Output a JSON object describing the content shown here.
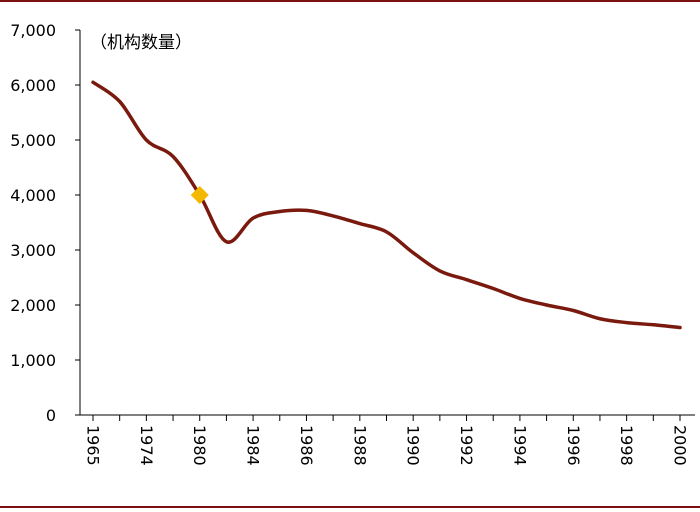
{
  "chart_data": {
    "type": "line",
    "title": "",
    "unit_label": "（机构数量）",
    "xlabel": "",
    "ylabel": "",
    "ylim": [
      0,
      7000
    ],
    "yticks": [
      0,
      1000,
      2000,
      3000,
      4000,
      5000,
      6000,
      7000
    ],
    "ytick_labels": [
      "0",
      "1,000",
      "2,000",
      "3,000",
      "4,000",
      "5,000",
      "6,000",
      "7,000"
    ],
    "categories": [
      "1965",
      "",
      "1974",
      "",
      "1980",
      "",
      "1984",
      "",
      "1986",
      "",
      "1988",
      "",
      "1990",
      "",
      "1992",
      "",
      "1994",
      "",
      "1996",
      "",
      "1998",
      "",
      "2000"
    ],
    "grid": false,
    "legend": "none",
    "series": [
      {
        "values": [
          6050,
          5700,
          5000,
          4700,
          4000,
          3150,
          3580,
          3700,
          3720,
          3620,
          3480,
          3330,
          2950,
          2620,
          2460,
          2300,
          2120,
          2000,
          1900,
          1750,
          1680,
          1640,
          1590
        ]
      }
    ],
    "highlight": {
      "category_index": 4,
      "value": 4000
    },
    "colors": {
      "line": "#7a1a0e",
      "marker": "#f5b800",
      "axis": "#000000",
      "frame": "#7a1010"
    }
  }
}
